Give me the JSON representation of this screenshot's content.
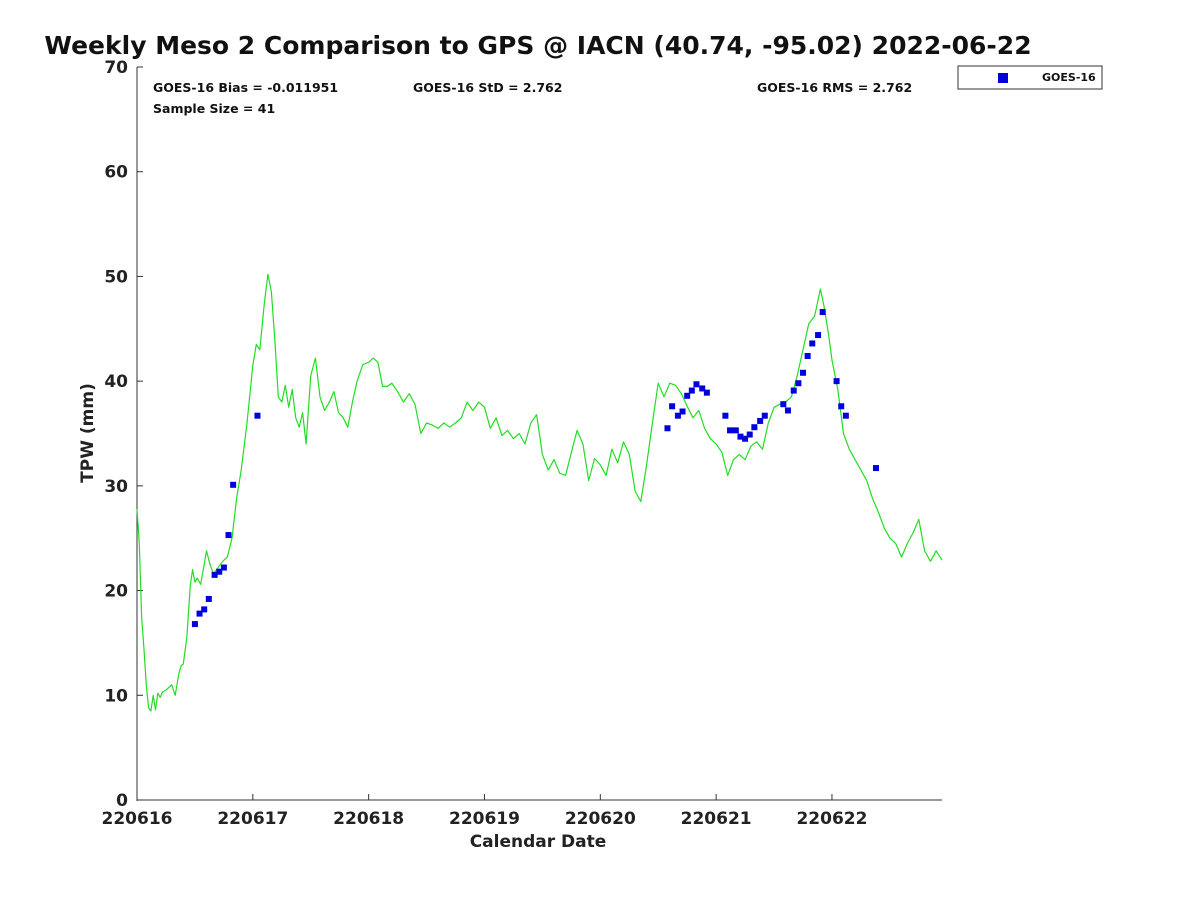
{
  "chart_data": {
    "type": "scatter",
    "title": "Weekly Meso 2 Comparison to GPS @ IACN (40.74, -95.02) 2022-06-22",
    "xlabel": "Calendar Date",
    "ylabel": "TPW (mm)",
    "xlim": [
      220616,
      220622.95
    ],
    "ylim": [
      0,
      70
    ],
    "xticks": [
      "220616",
      "220617",
      "220618",
      "220619",
      "220620",
      "220621",
      "220622"
    ],
    "yticks": [
      0,
      10,
      20,
      30,
      40,
      50,
      60,
      70
    ],
    "grid": false,
    "legend_position": "top-right outside",
    "stats": {
      "bias": "GOES-16 Bias = -0.011951",
      "std": "GOES-16 StD = 2.762",
      "rms": "GOES-16 RMS = 2.762",
      "sample": "Sample Size = 41"
    },
    "series": [
      {
        "name": "GOES-16",
        "kind": "scatter",
        "color": "#0000dd",
        "marker": "square",
        "x": [
          220616.5,
          220616.54,
          220616.58,
          220616.62,
          220616.67,
          220616.71,
          220616.75,
          220616.79,
          220616.83,
          220617.04,
          220620.58,
          220620.62,
          220620.67,
          220620.71,
          220620.75,
          220620.79,
          220620.83,
          220620.88,
          220620.92,
          220621.08,
          220621.12,
          220621.17,
          220621.21,
          220621.25,
          220621.29,
          220621.33,
          220621.38,
          220621.42,
          220621.58,
          220621.62,
          220621.67,
          220621.71,
          220621.75,
          220621.79,
          220621.83,
          220621.88,
          220621.92,
          220622.04,
          220622.08,
          220622.12,
          220622.38
        ],
        "y": [
          16.8,
          17.8,
          18.2,
          19.2,
          21.5,
          21.8,
          22.2,
          25.3,
          30.1,
          36.7,
          35.5,
          37.6,
          36.7,
          37.1,
          38.6,
          39.1,
          39.7,
          39.3,
          38.9,
          36.7,
          35.3,
          35.3,
          34.7,
          34.5,
          34.9,
          35.6,
          36.2,
          36.7,
          37.8,
          37.2,
          39.1,
          39.8,
          40.8,
          42.4,
          43.6,
          44.4,
          46.6,
          40.0,
          37.6,
          36.7,
          31.7
        ]
      },
      {
        "name": "",
        "kind": "line",
        "color": "#22dd22",
        "x": [
          220616.0,
          220616.02,
          220616.04,
          220616.06,
          220616.08,
          220616.1,
          220616.12,
          220616.14,
          220616.16,
          220616.18,
          220616.2,
          220616.22,
          220616.25,
          220616.3,
          220616.33,
          220616.36,
          220616.38,
          220616.4,
          220616.43,
          220616.46,
          220616.48,
          220616.5,
          220616.52,
          220616.55,
          220616.58,
          220616.6,
          220616.63,
          220616.66,
          220616.7,
          220616.74,
          220616.78,
          220616.82,
          220616.86,
          220616.9,
          220616.95,
          220617.0,
          220617.03,
          220617.06,
          220617.1,
          220617.13,
          220617.16,
          220617.19,
          220617.22,
          220617.25,
          220617.28,
          220617.31,
          220617.34,
          220617.37,
          220617.4,
          220617.43,
          220617.46,
          220617.5,
          220617.54,
          220617.58,
          220617.62,
          220617.66,
          220617.7,
          220617.74,
          220617.78,
          220617.82,
          220617.86,
          220617.9,
          220617.95,
          220618.0,
          220618.04,
          220618.08,
          220618.12,
          220618.16,
          220618.2,
          220618.25,
          220618.3,
          220618.35,
          220618.4,
          220618.45,
          220618.5,
          220618.55,
          220618.6,
          220618.65,
          220618.7,
          220618.75,
          220618.8,
          220618.85,
          220618.9,
          220618.95,
          220619.0,
          220619.05,
          220619.1,
          220619.15,
          220619.2,
          220619.25,
          220619.3,
          220619.35,
          220619.4,
          220619.45,
          220619.5,
          220619.55,
          220619.6,
          220619.65,
          220619.7,
          220619.75,
          220619.8,
          220619.85,
          220619.9,
          220619.95,
          220620.0,
          220620.05,
          220620.1,
          220620.15,
          220620.2,
          220620.25,
          220620.3,
          220620.35,
          220620.4,
          220620.45,
          220620.5,
          220620.55,
          220620.6,
          220620.65,
          220620.7,
          220620.75,
          220620.8,
          220620.85,
          220620.9,
          220620.95,
          220621.0,
          220621.05,
          220621.1,
          220621.15,
          220621.2,
          220621.25,
          220621.3,
          220621.35,
          220621.4,
          220621.45,
          220621.5,
          220621.55,
          220621.6,
          220621.65,
          220621.7,
          220621.75,
          220621.8,
          220621.85,
          220621.9,
          220621.93,
          220621.97,
          220622.0,
          220622.05,
          220622.1,
          220622.15,
          220622.2,
          220622.25,
          220622.3,
          220622.35,
          220622.4,
          220622.45,
          220622.5,
          220622.55,
          220622.6,
          220622.65,
          220622.7,
          220622.75,
          220622.8,
          220622.85,
          220622.9,
          220622.95
        ],
        "y": [
          27.8,
          24.5,
          17.5,
          14.5,
          11.0,
          8.8,
          8.5,
          10.0,
          8.6,
          10.2,
          9.8,
          10.3,
          10.5,
          11.0,
          10.0,
          12.0,
          12.8,
          13.0,
          15.5,
          20.5,
          22.0,
          20.8,
          21.2,
          20.6,
          22.5,
          23.8,
          22.5,
          21.6,
          22.2,
          22.8,
          23.2,
          25.0,
          28.8,
          31.5,
          36.0,
          41.5,
          43.5,
          43.0,
          47.5,
          50.2,
          48.5,
          44.0,
          38.5,
          38.0,
          39.6,
          37.5,
          39.2,
          36.5,
          35.6,
          37.0,
          34.0,
          40.5,
          42.2,
          38.5,
          37.2,
          38.0,
          39.0,
          37.0,
          36.5,
          35.6,
          38.0,
          40.0,
          41.6,
          41.8,
          42.2,
          41.8,
          39.5,
          39.5,
          39.8,
          39.0,
          38.0,
          38.8,
          37.8,
          35.0,
          36.0,
          35.8,
          35.5,
          36.0,
          35.6,
          36.0,
          36.5,
          38.0,
          37.2,
          38.0,
          37.5,
          35.5,
          36.5,
          34.8,
          35.3,
          34.5,
          35.0,
          34.0,
          36.0,
          36.8,
          33.0,
          31.5,
          32.5,
          31.2,
          31.0,
          33.2,
          35.3,
          34.0,
          30.5,
          32.6,
          32.0,
          31.0,
          33.5,
          32.2,
          34.2,
          33.0,
          29.5,
          28.5,
          32.0,
          36.0,
          39.8,
          38.5,
          39.8,
          39.6,
          38.8,
          37.6,
          36.5,
          37.2,
          35.5,
          34.5,
          34.0,
          33.2,
          31.0,
          32.5,
          33.0,
          32.5,
          33.8,
          34.2,
          33.5,
          36.0,
          37.5,
          37.8,
          38.0,
          38.5,
          40.5,
          43.0,
          45.5,
          46.2,
          48.8,
          47.2,
          44.5,
          42.0,
          39.2,
          35.0,
          33.5,
          32.5,
          31.5,
          30.5,
          28.8,
          27.5,
          26.0,
          25.0,
          24.5,
          23.2,
          24.5,
          25.5,
          26.8,
          23.8,
          22.8,
          23.8,
          22.9
        ]
      }
    ]
  }
}
